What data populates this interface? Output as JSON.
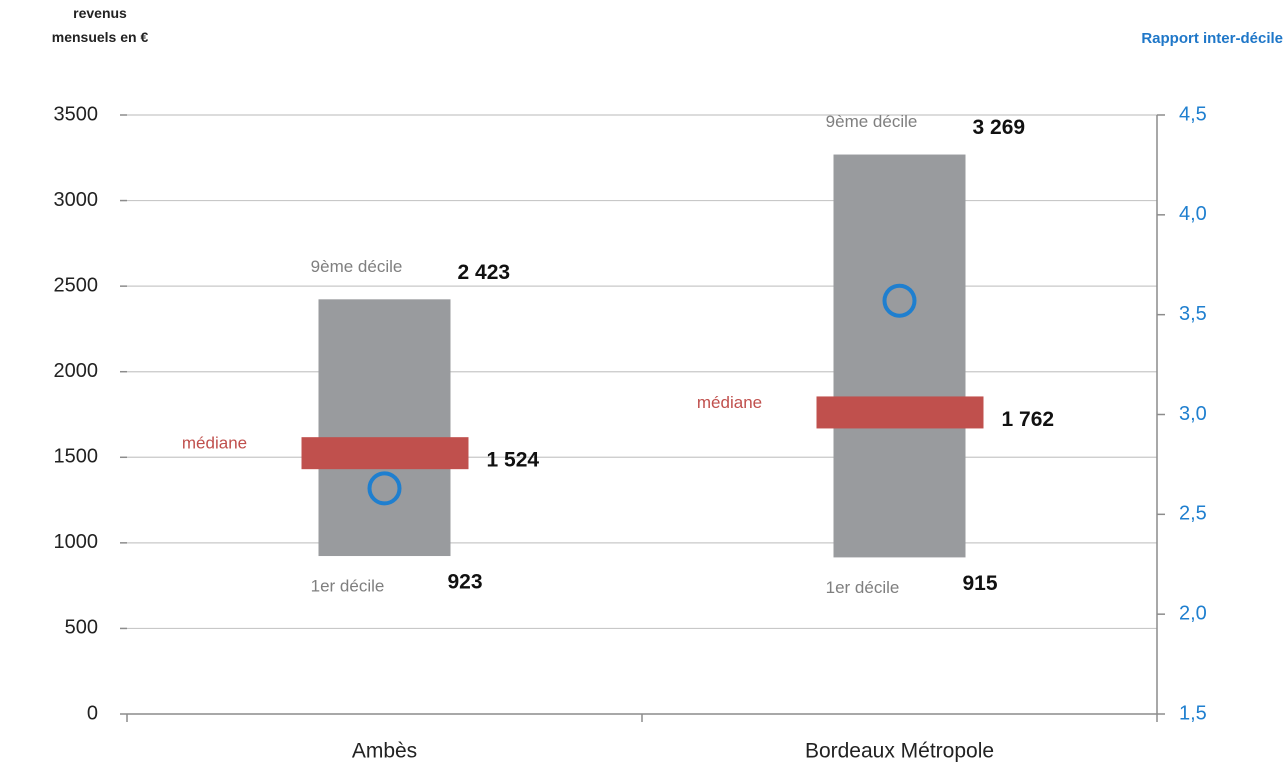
{
  "chart_data": {
    "type": "bar",
    "ylabel": "revenus\nmensuels en €",
    "y2label": "Rapport inter-décile",
    "categories": [
      "Ambès",
      "Bordeaux Métropole"
    ],
    "series": [
      {
        "name": "1er décile",
        "color": "#999b9e",
        "values": [
          923,
          915
        ],
        "value_labels": [
          "923",
          "915"
        ]
      },
      {
        "name": "9ème décile",
        "color": "#999b9e",
        "values": [
          2423,
          3269
        ],
        "value_labels": [
          "2 423",
          "3 269"
        ]
      },
      {
        "name": "médiane",
        "color": "#c0504d",
        "values": [
          1524,
          1762
        ],
        "value_labels": [
          "1 524",
          "1 762"
        ]
      },
      {
        "color": "#1f7fcf",
        "values": [
          2.63,
          3.57
        ],
        "axis": "y2"
      }
    ],
    "ylim": [
      0,
      3500
    ],
    "yticks": [
      0,
      500,
      1000,
      1500,
      2000,
      2500,
      3000,
      3500
    ],
    "y2lim": [
      1.5,
      4.5
    ],
    "y2ticks": [
      {
        "value": 1.5,
        "label": "1,5"
      },
      {
        "value": 2.0,
        "label": "2,0"
      },
      {
        "value": 2.5,
        "label": "2,5"
      },
      {
        "value": 3.0,
        "label": "3,0"
      },
      {
        "value": 3.5,
        "label": "3,5"
      },
      {
        "value": 4.0,
        "label": "4,0"
      },
      {
        "value": 4.5,
        "label": "4,5"
      }
    ],
    "grid": true
  }
}
